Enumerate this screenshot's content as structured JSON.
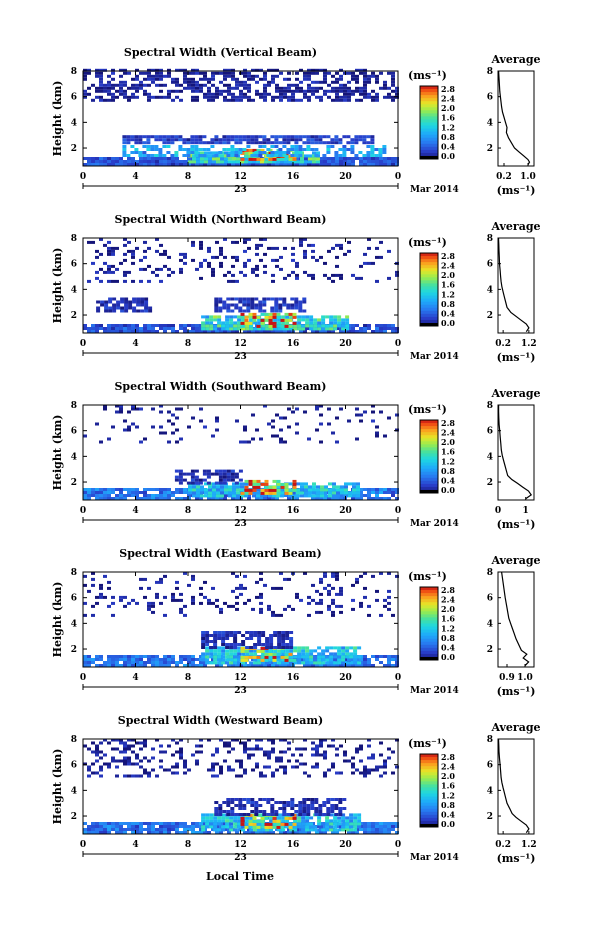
{
  "x_axis_label": "Local Time",
  "chart_data": [
    {
      "type": "heatmap",
      "title": "Spectral Width (Vertical Beam)",
      "ylabel": "Height (km)",
      "xlabel": "Local Time",
      "xticks": [
        "0",
        "4",
        "8",
        "12",
        "16",
        "20",
        "0"
      ],
      "xlim": [
        0,
        24
      ],
      "ylim": [
        0.6,
        8
      ],
      "yticks": [
        "2",
        "4",
        "6",
        "8"
      ],
      "date_day": "23",
      "date_month": "Mar 2014",
      "colorbar": {
        "unit": "(ms⁻¹)",
        "ticks": [
          "2.8",
          "2.4",
          "2.0",
          "1.6",
          "1.2",
          "0.8",
          "0.4",
          "0.0"
        ],
        "range": [
          0,
          2.8
        ]
      },
      "regions": [
        {
          "x": [
            0,
            24
          ],
          "y": [
            0.6,
            1.3
          ],
          "value": 0.4,
          "density": 0.95
        },
        {
          "x": [
            8,
            18
          ],
          "y": [
            0.8,
            1.6
          ],
          "value": 1.4,
          "density": 0.9
        },
        {
          "x": [
            12,
            16
          ],
          "y": [
            1.0,
            1.9
          ],
          "value": 2.3,
          "density": 0.7
        },
        {
          "x": [
            3,
            23
          ],
          "y": [
            1.3,
            2.2
          ],
          "value": 0.9,
          "density": 0.55
        },
        {
          "x": [
            3,
            22
          ],
          "y": [
            2.3,
            3.0
          ],
          "value": 0.3,
          "density": 0.85
        },
        {
          "x": [
            0,
            24
          ],
          "y": [
            5.6,
            8.0
          ],
          "value": 0.1,
          "density": 0.55
        }
      ],
      "average_profile": {
        "title": "Average",
        "unit": "(ms⁻¹)",
        "xticks": [
          "0.2",
          "1.0"
        ],
        "xtick_values": [
          0.2,
          1.0
        ],
        "xlim": [
          0,
          1.2
        ],
        "yticks": [
          "2",
          "4",
          "6",
          "8"
        ],
        "points": [
          [
            1.0,
            0.7
          ],
          [
            1.05,
            0.9
          ],
          [
            1.0,
            1.1
          ],
          [
            0.85,
            1.4
          ],
          [
            0.7,
            1.7
          ],
          [
            0.55,
            2.0
          ],
          [
            0.45,
            2.4
          ],
          [
            0.35,
            2.8
          ],
          [
            0.28,
            3.2
          ],
          [
            0.3,
            3.6
          ],
          [
            0.25,
            4.0
          ],
          [
            0.2,
            4.4
          ],
          [
            0.15,
            4.8
          ],
          [
            0.12,
            5.2
          ],
          [
            0.1,
            5.6
          ],
          [
            0.08,
            6.0
          ],
          [
            0.06,
            6.4
          ],
          [
            0.05,
            6.8
          ],
          [
            0.04,
            7.2
          ],
          [
            0.03,
            7.6
          ],
          [
            0.02,
            8.0
          ]
        ]
      }
    },
    {
      "type": "heatmap",
      "title": "Spectral Width (Northward Beam)",
      "ylabel": "Height (km)",
      "xlabel": "Local Time",
      "xticks": [
        "0",
        "4",
        "8",
        "12",
        "16",
        "20",
        "0"
      ],
      "xlim": [
        0,
        24
      ],
      "ylim": [
        0.6,
        8
      ],
      "yticks": [
        "2",
        "4",
        "6",
        "8"
      ],
      "date_day": "23",
      "date_month": "Mar 2014",
      "colorbar": {
        "unit": "(ms⁻¹)",
        "ticks": [
          "2.8",
          "2.4",
          "2.0",
          "1.6",
          "1.2",
          "0.8",
          "0.4",
          "0.0"
        ],
        "range": [
          0,
          2.8
        ]
      },
      "regions": [
        {
          "x": [
            0,
            24
          ],
          "y": [
            0.6,
            1.3
          ],
          "value": 0.4,
          "density": 0.9
        },
        {
          "x": [
            9,
            20
          ],
          "y": [
            0.8,
            1.8
          ],
          "value": 1.3,
          "density": 0.85
        },
        {
          "x": [
            12,
            16
          ],
          "y": [
            1.0,
            2.0
          ],
          "value": 2.3,
          "density": 0.65
        },
        {
          "x": [
            1,
            5
          ],
          "y": [
            2.2,
            3.3
          ],
          "value": 0.2,
          "density": 0.6
        },
        {
          "x": [
            10,
            17
          ],
          "y": [
            2.2,
            3.3
          ],
          "value": 0.25,
          "density": 0.7
        },
        {
          "x": [
            0,
            24
          ],
          "y": [
            4.5,
            8.0
          ],
          "value": 0.1,
          "density": 0.18
        }
      ],
      "average_profile": {
        "title": "Average",
        "unit": "(ms⁻¹)",
        "xticks": [
          "0.2",
          "1.2"
        ],
        "xtick_values": [
          0.2,
          1.2
        ],
        "xlim": [
          0,
          1.4
        ],
        "yticks": [
          "2",
          "4",
          "6",
          "8"
        ],
        "points": [
          [
            1.1,
            0.7
          ],
          [
            1.2,
            1.0
          ],
          [
            1.1,
            1.3
          ],
          [
            0.9,
            1.6
          ],
          [
            0.7,
            1.9
          ],
          [
            0.5,
            2.2
          ],
          [
            0.35,
            2.6
          ],
          [
            0.3,
            3.0
          ],
          [
            0.25,
            3.4
          ],
          [
            0.2,
            3.8
          ],
          [
            0.15,
            4.2
          ],
          [
            0.12,
            4.6
          ],
          [
            0.1,
            5.0
          ],
          [
            0.08,
            5.5
          ],
          [
            0.06,
            6.0
          ],
          [
            0.05,
            6.5
          ],
          [
            0.04,
            7.0
          ],
          [
            0.03,
            7.5
          ],
          [
            0.02,
            8.0
          ]
        ]
      }
    },
    {
      "type": "heatmap",
      "title": "Spectral Width (Southward Beam)",
      "ylabel": "Height (km)",
      "xlabel": "Local Time",
      "xticks": [
        "0",
        "4",
        "8",
        "12",
        "16",
        "20",
        "0"
      ],
      "xlim": [
        0,
        24
      ],
      "ylim": [
        0.6,
        8
      ],
      "yticks": [
        "2",
        "4",
        "6",
        "8"
      ],
      "date_day": "23",
      "date_month": "Mar 2014",
      "colorbar": {
        "unit": "(ms⁻¹)",
        "ticks": [
          "2.8",
          "2.4",
          "2.0",
          "1.6",
          "1.2",
          "0.8",
          "0.4",
          "0.0"
        ],
        "range": [
          0,
          2.8
        ]
      },
      "regions": [
        {
          "x": [
            0,
            24
          ],
          "y": [
            0.6,
            1.4
          ],
          "value": 0.6,
          "density": 0.85
        },
        {
          "x": [
            8,
            21
          ],
          "y": [
            0.8,
            1.9
          ],
          "value": 1.1,
          "density": 0.85
        },
        {
          "x": [
            12,
            16
          ],
          "y": [
            1.0,
            2.0
          ],
          "value": 2.2,
          "density": 0.65
        },
        {
          "x": [
            7,
            12
          ],
          "y": [
            1.8,
            2.8
          ],
          "value": 0.2,
          "density": 0.7
        },
        {
          "x": [
            0,
            24
          ],
          "y": [
            5.0,
            8.0
          ],
          "value": 0.1,
          "density": 0.12
        }
      ],
      "average_profile": {
        "title": "Average",
        "unit": "(ms⁻¹)",
        "xticks": [
          "0",
          "1"
        ],
        "xtick_values": [
          0,
          1
        ],
        "xlim": [
          0,
          1.3
        ],
        "yticks": [
          "2",
          "4",
          "6",
          "8"
        ],
        "points": [
          [
            1.0,
            0.7
          ],
          [
            1.2,
            1.0
          ],
          [
            1.1,
            1.3
          ],
          [
            0.9,
            1.6
          ],
          [
            0.7,
            1.9
          ],
          [
            0.5,
            2.2
          ],
          [
            0.35,
            2.5
          ],
          [
            0.3,
            2.9
          ],
          [
            0.25,
            3.3
          ],
          [
            0.2,
            3.7
          ],
          [
            0.15,
            4.1
          ],
          [
            0.12,
            4.5
          ],
          [
            0.1,
            5.0
          ],
          [
            0.08,
            5.5
          ],
          [
            0.06,
            6.0
          ],
          [
            0.04,
            6.5
          ],
          [
            0.03,
            7.0
          ],
          [
            0.02,
            7.5
          ],
          [
            0.02,
            8.0
          ]
        ]
      }
    },
    {
      "type": "heatmap",
      "title": "Spectral Width (Eastward Beam)",
      "ylabel": "Height (km)",
      "xlabel": "Local Time",
      "xticks": [
        "0",
        "4",
        "8",
        "12",
        "16",
        "20",
        "0"
      ],
      "xlim": [
        0,
        24
      ],
      "ylim": [
        0.6,
        8
      ],
      "yticks": [
        "2",
        "4",
        "6",
        "8"
      ],
      "date_day": "23",
      "date_month": "Mar 2014",
      "colorbar": {
        "unit": "(ms⁻¹)",
        "ticks": [
          "2.8",
          "2.4",
          "2.0",
          "1.6",
          "1.2",
          "0.8",
          "0.4",
          "0.0"
        ],
        "range": [
          0,
          2.8
        ]
      },
      "regions": [
        {
          "x": [
            0,
            24
          ],
          "y": [
            0.6,
            1.5
          ],
          "value": 0.6,
          "density": 0.85
        },
        {
          "x": [
            9,
            21
          ],
          "y": [
            0.8,
            2.0
          ],
          "value": 1.1,
          "density": 0.85
        },
        {
          "x": [
            12,
            16
          ],
          "y": [
            1.0,
            2.0
          ],
          "value": 2.2,
          "density": 0.6
        },
        {
          "x": [
            9,
            16
          ],
          "y": [
            2.0,
            3.2
          ],
          "value": 0.2,
          "density": 0.7
        },
        {
          "x": [
            0,
            24
          ],
          "y": [
            4.5,
            8.0
          ],
          "value": 0.1,
          "density": 0.15
        }
      ],
      "average_profile": {
        "title": "Average",
        "unit": "(ms⁻¹)",
        "xticks": [
          "0.9",
          "1.0"
        ],
        "xtick_values": [
          0.9,
          1.0
        ],
        "xlim": [
          0.85,
          1.05
        ],
        "yticks": [
          "2",
          "4",
          "6",
          "8"
        ],
        "points": [
          [
            1.0,
            0.7
          ],
          [
            1.02,
            1.0
          ],
          [
            0.99,
            1.3
          ],
          [
            1.01,
            1.6
          ],
          [
            0.98,
            1.9
          ],
          [
            0.97,
            2.2
          ],
          [
            0.96,
            2.5
          ],
          [
            0.95,
            2.8
          ],
          [
            0.94,
            3.2
          ],
          [
            0.93,
            3.6
          ],
          [
            0.92,
            4.0
          ],
          [
            0.91,
            4.4
          ],
          [
            0.905,
            4.8
          ],
          [
            0.9,
            5.2
          ],
          [
            0.895,
            5.6
          ],
          [
            0.89,
            6.0
          ],
          [
            0.885,
            6.5
          ],
          [
            0.88,
            7.0
          ],
          [
            0.875,
            7.5
          ],
          [
            0.87,
            8.0
          ]
        ]
      }
    },
    {
      "type": "heatmap",
      "title": "Spectral Width (Westward Beam)",
      "ylabel": "Height (km)",
      "xlabel": "Local Time",
      "xticks": [
        "0",
        "4",
        "8",
        "12",
        "16",
        "20",
        "0"
      ],
      "xlim": [
        0,
        24
      ],
      "ylim": [
        0.6,
        8
      ],
      "yticks": [
        "2",
        "4",
        "6",
        "8"
      ],
      "date_day": "23",
      "date_month": "Mar 2014",
      "colorbar": {
        "unit": "(ms⁻¹)",
        "ticks": [
          "2.8",
          "2.4",
          "2.0",
          "1.6",
          "1.2",
          "0.8",
          "0.4",
          "0.0"
        ],
        "range": [
          0,
          2.8
        ]
      },
      "regions": [
        {
          "x": [
            0,
            24
          ],
          "y": [
            0.6,
            1.5
          ],
          "value": 0.6,
          "density": 0.85
        },
        {
          "x": [
            9,
            21
          ],
          "y": [
            0.8,
            2.0
          ],
          "value": 1.1,
          "density": 0.85
        },
        {
          "x": [
            12,
            16
          ],
          "y": [
            1.0,
            2.0
          ],
          "value": 2.2,
          "density": 0.6
        },
        {
          "x": [
            10,
            20
          ],
          "y": [
            2.0,
            3.3
          ],
          "value": 0.2,
          "density": 0.6
        },
        {
          "x": [
            0,
            24
          ],
          "y": [
            5.0,
            8.0
          ],
          "value": 0.1,
          "density": 0.25
        }
      ],
      "average_profile": {
        "title": "Average",
        "unit": "(ms⁻¹)",
        "xticks": [
          "0.2",
          "1.2"
        ],
        "xtick_values": [
          0.2,
          1.2
        ],
        "xlim": [
          0,
          1.4
        ],
        "yticks": [
          "2",
          "4",
          "6",
          "8"
        ],
        "points": [
          [
            1.1,
            0.7
          ],
          [
            1.2,
            1.0
          ],
          [
            1.1,
            1.3
          ],
          [
            0.9,
            1.6
          ],
          [
            0.7,
            1.9
          ],
          [
            0.55,
            2.2
          ],
          [
            0.45,
            2.6
          ],
          [
            0.35,
            3.0
          ],
          [
            0.3,
            3.4
          ],
          [
            0.25,
            3.8
          ],
          [
            0.2,
            4.2
          ],
          [
            0.15,
            4.6
          ],
          [
            0.12,
            5.0
          ],
          [
            0.1,
            5.5
          ],
          [
            0.08,
            6.0
          ],
          [
            0.06,
            6.5
          ],
          [
            0.04,
            7.0
          ],
          [
            0.03,
            7.5
          ],
          [
            0.02,
            8.0
          ]
        ]
      }
    }
  ]
}
